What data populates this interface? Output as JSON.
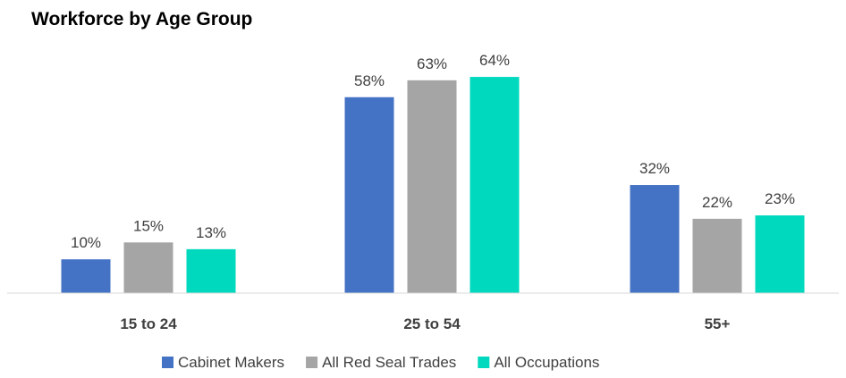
{
  "chart_data": {
    "type": "bar",
    "title": "Workforce by Age Group",
    "categories": [
      "15 to 24",
      "25 to 54",
      "55+"
    ],
    "series": [
      {
        "name": "Cabinet Makers",
        "values": [
          10,
          58,
          32
        ],
        "labels": [
          "10%",
          "58%",
          "32%"
        ],
        "color": "#4472C4"
      },
      {
        "name": "All Red Seal Trades",
        "values": [
          15,
          63,
          22
        ],
        "labels": [
          "15%",
          "63%",
          "22%"
        ],
        "color": "#A5A5A5"
      },
      {
        "name": "All Occupations",
        "values": [
          13,
          64,
          23
        ],
        "labels": [
          "13%",
          "64%",
          "23%"
        ],
        "color": "#00D9BE"
      }
    ],
    "ylim": [
      0,
      70
    ],
    "grid": false,
    "legend_position": "bottom"
  }
}
